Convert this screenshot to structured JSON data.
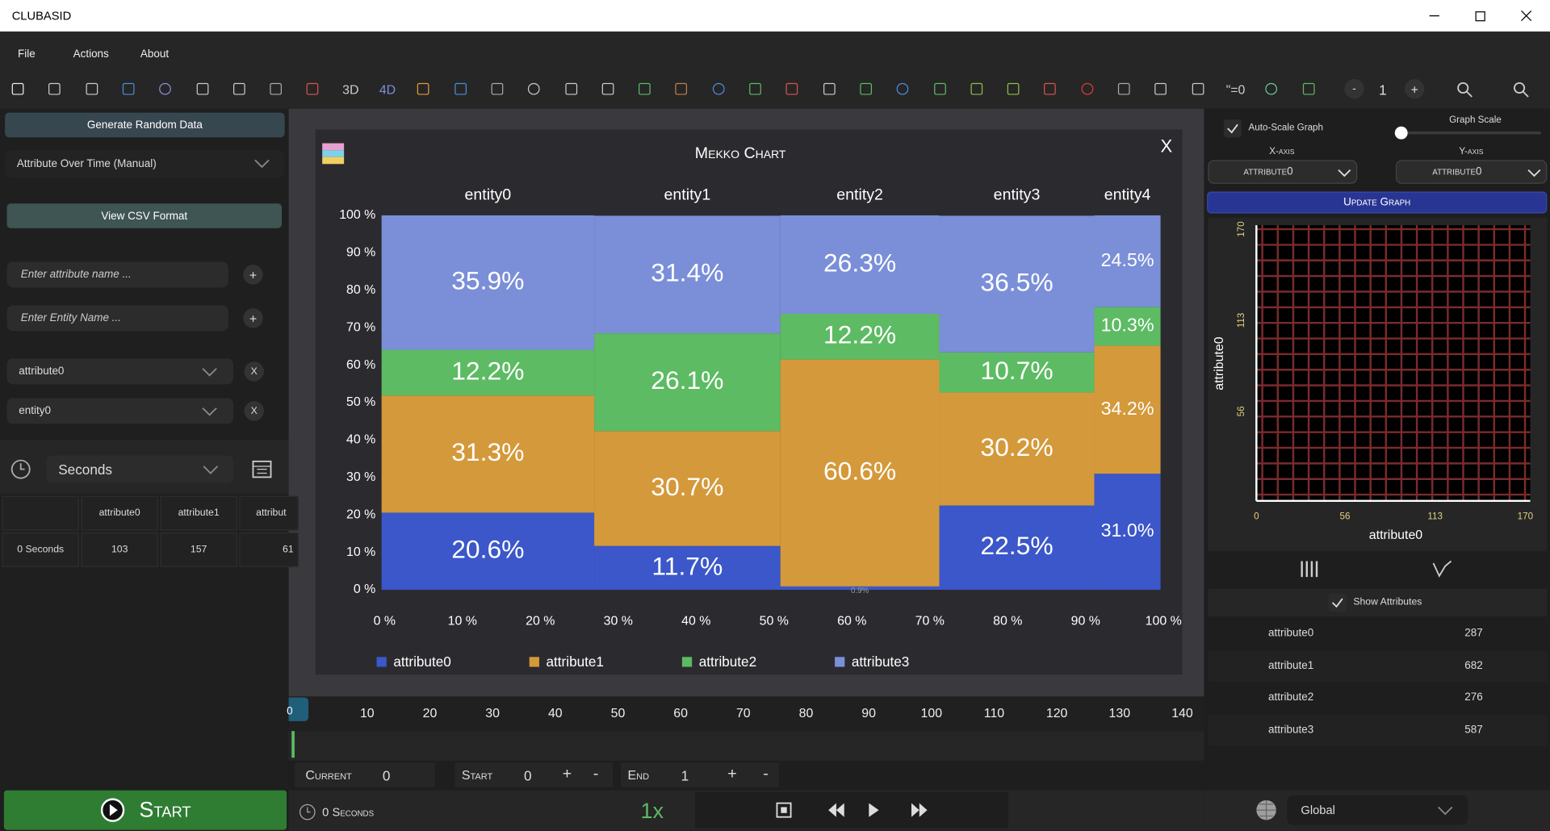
{
  "window": {
    "title": "CLUBASID"
  },
  "menu": [
    "File",
    "Actions",
    "About"
  ],
  "toolbar": {
    "text_icons": [
      "3D",
      "4D",
      "\"=0"
    ],
    "minus": "-",
    "zoom": "1",
    "plus": "+"
  },
  "left": {
    "generate": "Generate Random Data",
    "mode": "Attribute Over Time (Manual)",
    "csv": "View CSV Format",
    "attr_placeholder": "Enter attribute name ...",
    "entity_placeholder": "Enter Entity Name ...",
    "add": "+",
    "attr_select": "attribute0",
    "entity_select": "entity0",
    "remove": "X",
    "time_unit": "Seconds",
    "table": {
      "header": [
        "attribute0",
        "attribute1",
        "attribut"
      ],
      "rows": [
        [
          "0 Seconds",
          "103",
          "157",
          "61"
        ]
      ]
    },
    "start": "Start"
  },
  "mekko": {
    "title": "Mekko Chart",
    "close": "X",
    "categories": [
      "entity0",
      "entity1",
      "entity2",
      "entity3",
      "entity4"
    ],
    "widths": [
      27.3,
      23.9,
      20.4,
      19.9,
      8.5
    ],
    "series": [
      {
        "name": "attribute0",
        "color": "#3b57c9",
        "values": [
          20.6,
          11.7,
          0.9,
          22.5,
          31.0
        ],
        "value_labels": [
          "20.6%",
          "11.7%",
          "0.9%",
          "22.5%",
          "31.0%"
        ]
      },
      {
        "name": "attribute1",
        "color": "#d4993a",
        "values": [
          31.3,
          30.7,
          60.6,
          30.2,
          34.2
        ],
        "value_labels": [
          "31.3%",
          "30.7%",
          "60.6%",
          "30.2%",
          "34.2%"
        ]
      },
      {
        "name": "attribute2",
        "color": "#5dbb63",
        "values": [
          12.2,
          26.1,
          12.2,
          10.7,
          10.3
        ],
        "value_labels": [
          "12.2%",
          "26.1%",
          "12.2%",
          "10.7%",
          "10.3%"
        ]
      },
      {
        "name": "attribute3",
        "color": "#7b8fd8",
        "values": [
          35.9,
          31.4,
          26.3,
          36.5,
          24.5
        ],
        "value_labels": [
          "35.9%",
          "31.4%",
          "26.3%",
          "36.5%",
          "24.5%"
        ]
      }
    ],
    "xlim": [
      0,
      100
    ],
    "ylim": [
      0,
      100
    ],
    "xticks": [
      {
        "value": 0,
        "label": "0 %"
      },
      {
        "value": 10,
        "label": "10 %"
      },
      {
        "value": 20,
        "label": "20 %"
      },
      {
        "value": 30,
        "label": "30 %"
      },
      {
        "value": 40,
        "label": "40 %"
      },
      {
        "value": 50,
        "label": "50 %"
      },
      {
        "value": 60,
        "label": "60 %"
      },
      {
        "value": 70,
        "label": "70 %"
      },
      {
        "value": 80,
        "label": "80 %"
      },
      {
        "value": 90,
        "label": "90 %"
      },
      {
        "value": 100,
        "label": "100 %"
      }
    ],
    "yticks": [
      {
        "value": 0,
        "label": "0 %"
      },
      {
        "value": 10,
        "label": "10 %"
      },
      {
        "value": 20,
        "label": "20 %"
      },
      {
        "value": 30,
        "label": "30 %"
      },
      {
        "value": 40,
        "label": "40 %"
      },
      {
        "value": 50,
        "label": "50 %"
      },
      {
        "value": 60,
        "label": "60 %"
      },
      {
        "value": 70,
        "label": "70 %"
      },
      {
        "value": 80,
        "label": "80 %"
      },
      {
        "value": 90,
        "label": "90 %"
      },
      {
        "value": 100,
        "label": "100 %"
      }
    ]
  },
  "timeline": {
    "ticks": [
      0,
      10,
      20,
      30,
      40,
      50,
      60,
      70,
      80,
      90,
      100,
      110,
      120,
      130,
      140
    ],
    "current_label": "Current",
    "current": "0",
    "start_label": "Start",
    "start": "0",
    "end_label": "End",
    "end": "1",
    "plus": "+",
    "minus": "-",
    "elapsed": "0 Seconds",
    "speed": "1x"
  },
  "right": {
    "autoscale": "Auto-Scale Graph",
    "graph_scale": "Graph Scale",
    "x_axis": "X-axis",
    "y_axis": "Y-axis",
    "x_select": "attribute0",
    "y_select": "attribute0",
    "update": "Update Graph",
    "scatter": {
      "xlabel": "attribute0",
      "ylabel": "attribute0",
      "xlim": [
        0,
        170
      ],
      "ylim": [
        0,
        170
      ],
      "xticks": [
        0,
        56,
        113,
        170
      ],
      "yticks": [
        56,
        113,
        170
      ]
    },
    "show_attributes": "Show Attributes",
    "attributes": [
      {
        "name": "attribute0",
        "value": 287
      },
      {
        "name": "attribute1",
        "value": 682
      },
      {
        "name": "attribute2",
        "value": 276
      },
      {
        "name": "attribute3",
        "value": 587
      }
    ],
    "scope": "Global"
  }
}
